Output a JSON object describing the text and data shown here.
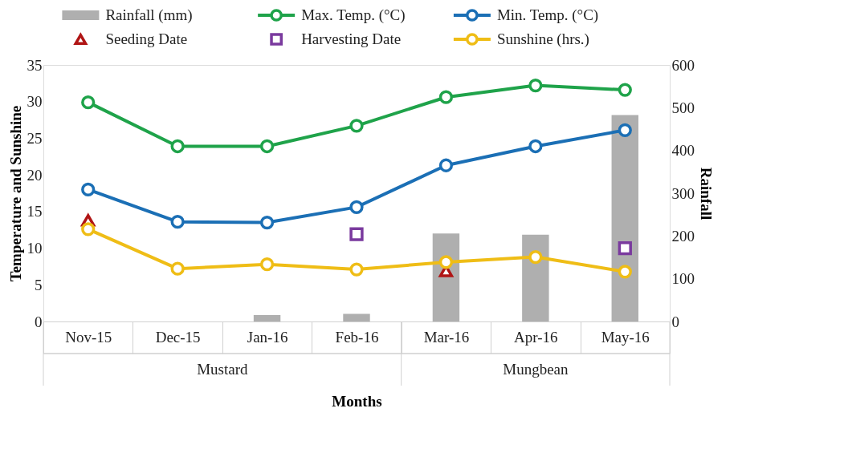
{
  "chart_data": {
    "type": "line",
    "xlabel": "Months",
    "ylabel": "Temperature and  Sunshine",
    "y2label": "Rainfall",
    "categories": [
      "Nov-15",
      "Dec-15",
      "Jan-16",
      "Feb-16",
      "Mar-16",
      "Apr-16",
      "May-16"
    ],
    "series": [
      {
        "name": "Rainfall (mm)",
        "type": "bar",
        "axis": "y2",
        "color": "#afafaf",
        "values": [
          null,
          null,
          15,
          18,
          206,
          203,
          483
        ]
      },
      {
        "name": "Max. Temp. (°C)",
        "marker": "circle",
        "color": "#1fa34a",
        "values": [
          29.9,
          23.9,
          23.9,
          26.7,
          30.6,
          32.2,
          31.6
        ]
      },
      {
        "name": "Min. Temp. (°C)",
        "marker": "circle",
        "color": "#1b6fb5",
        "values": [
          18.0,
          13.6,
          13.5,
          15.6,
          21.3,
          23.9,
          26.1
        ]
      },
      {
        "name": "Seeding Date",
        "type": "scatter",
        "marker": "triangle",
        "color": "#b01515",
        "values": [
          13.8,
          null,
          null,
          null,
          6.9,
          null,
          null
        ]
      },
      {
        "name": "Harvesting Date",
        "type": "scatter",
        "marker": "square",
        "color": "#7a3a9e",
        "values": [
          null,
          null,
          null,
          11.9,
          null,
          null,
          10.0
        ]
      },
      {
        "name": "Sunshine (hrs.)",
        "marker": "circle",
        "color": "#efbd16",
        "values": [
          12.6,
          7.2,
          7.8,
          7.1,
          8.1,
          8.8,
          6.8
        ]
      }
    ],
    "ylim": [
      0,
      35
    ],
    "yticks": [
      0,
      5,
      10,
      15,
      20,
      25,
      30,
      35
    ],
    "y2lim": [
      0,
      600
    ],
    "y2ticks": [
      0,
      100,
      200,
      300,
      400,
      500,
      600
    ],
    "annotations": [
      "Mustard",
      "Mungbean"
    ],
    "legend": "top",
    "grid": false
  }
}
